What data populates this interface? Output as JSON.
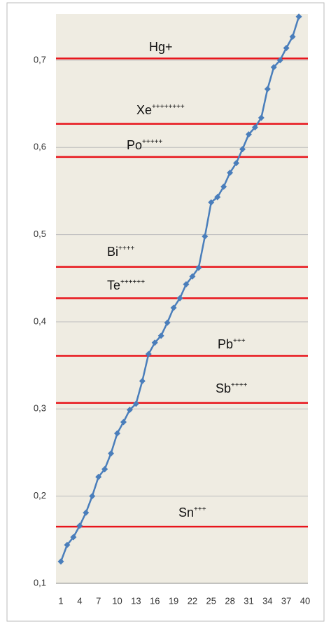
{
  "chart_data": {
    "type": "line",
    "categories": [
      1,
      null,
      null,
      4,
      null,
      null,
      7,
      null,
      null,
      10,
      null,
      null,
      13,
      null,
      null,
      16,
      null,
      null,
      19,
      null,
      null,
      22,
      null,
      null,
      25,
      null,
      null,
      28,
      null,
      null,
      31,
      null,
      null,
      34,
      null,
      null,
      37,
      null,
      null,
      40
    ],
    "series": [
      {
        "color": "#4a7ebb",
        "values": [
          0.125,
          0.144,
          0.153,
          0.166,
          0.181,
          0.2,
          0.222,
          0.231,
          0.249,
          0.272,
          0.285,
          0.299,
          0.306,
          0.332,
          0.363,
          0.376,
          0.384,
          0.399,
          0.416,
          0.427,
          0.443,
          0.452,
          0.462,
          0.498,
          0.537,
          0.543,
          0.555,
          0.571,
          0.582,
          0.598,
          0.615,
          0.623,
          0.634,
          0.667,
          0.692,
          0.7,
          0.714,
          0.727,
          0.75,
          null
        ]
      }
    ],
    "ylim": [
      0.1,
      0.753
    ],
    "yticks": [
      {
        "value": 0.1,
        "label": "0,1"
      },
      {
        "value": 0.2,
        "label": "0,2"
      },
      {
        "value": 0.3,
        "label": "0,3"
      },
      {
        "value": 0.4,
        "label": "0,4"
      },
      {
        "value": 0.5,
        "label": "0,5"
      },
      {
        "value": 0.6,
        "label": "0,6"
      },
      {
        "value": 0.7,
        "label": "0,7"
      }
    ],
    "grid": true,
    "reference_lines": [
      {
        "label": "Hg+",
        "value": 0.702,
        "color": "#e8141b"
      },
      {
        "label": "Xe",
        "sup": "++++++++",
        "value": 0.627,
        "color": "#e8141b"
      },
      {
        "label": "Po",
        "sup": "+++++",
        "value": 0.589,
        "color": "#e8141b"
      },
      {
        "label": "Bi",
        "sup": "++++",
        "value": 0.463,
        "color": "#e8141b"
      },
      {
        "label": "Te",
        "sup": "++++++",
        "value": 0.427,
        "color": "#e8141b"
      },
      {
        "label": "Pb",
        "sup": "+++",
        "value": 0.361,
        "color": "#e8141b"
      },
      {
        "label": "Sb",
        "sup": "++++",
        "value": 0.307,
        "color": "#e8141b"
      },
      {
        "label": "Sn",
        "sup": "+++",
        "value": 0.165,
        "color": "#e8141b"
      }
    ]
  }
}
